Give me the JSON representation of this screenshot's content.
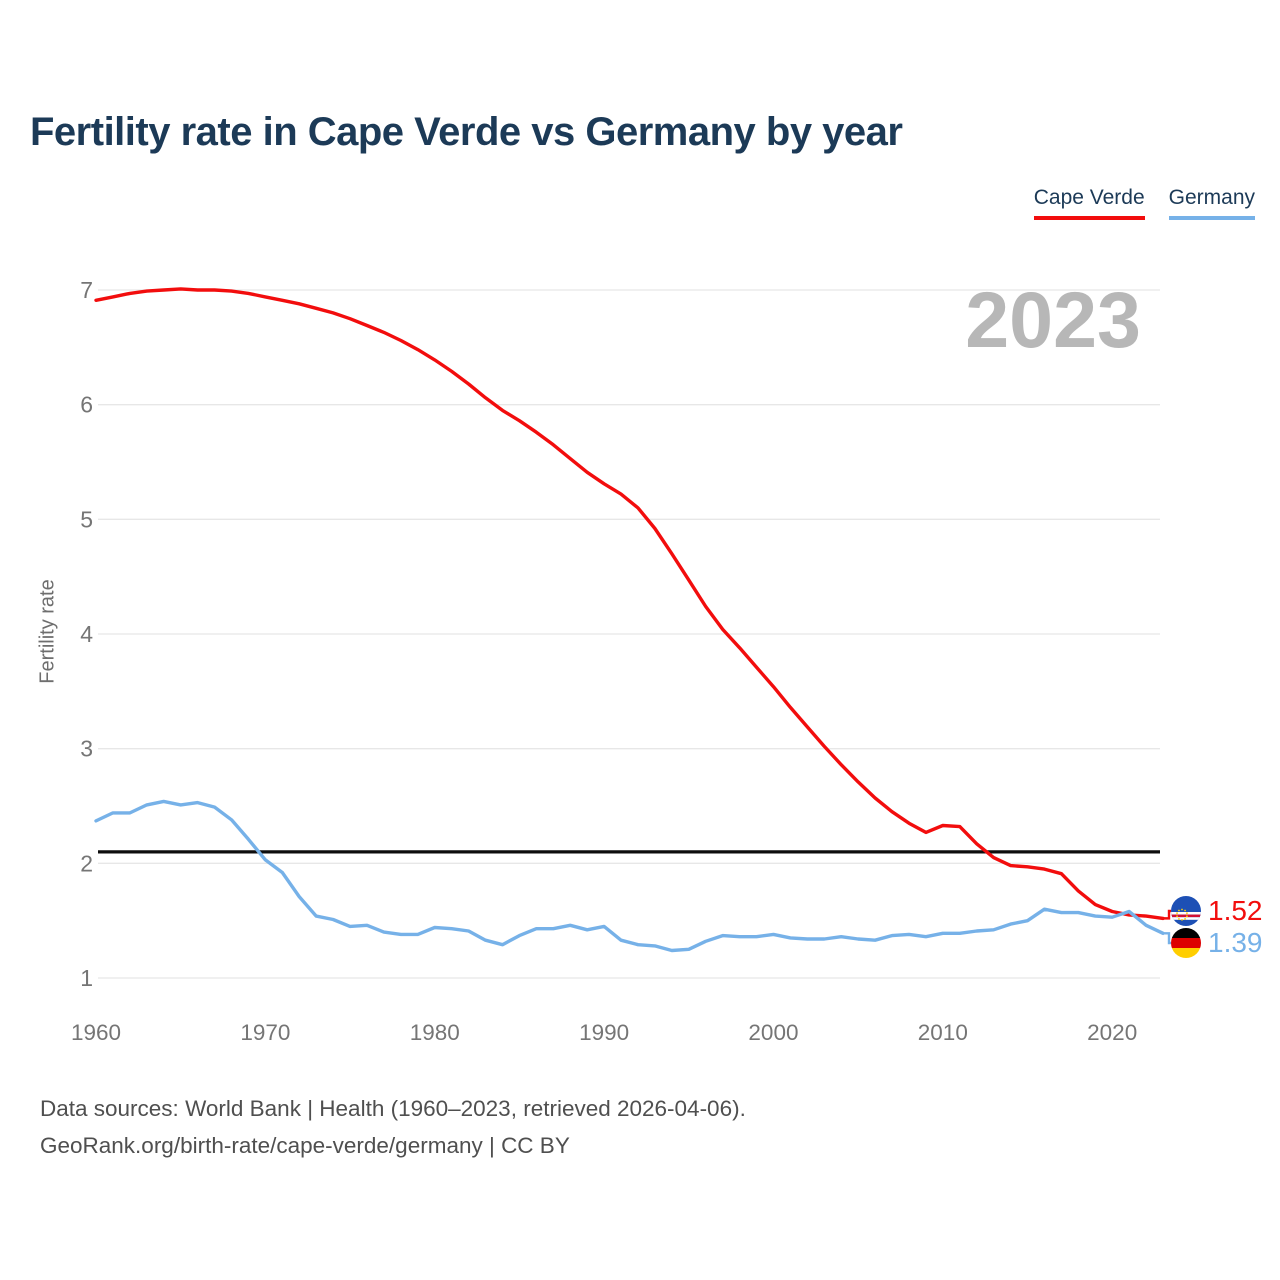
{
  "header": {
    "title": "Fertility rate in Cape Verde vs Germany by year"
  },
  "legend": {
    "items": [
      {
        "label": "Cape Verde",
        "color": "#f20d0d"
      },
      {
        "label": "Germany",
        "color": "#76b1e8"
      }
    ]
  },
  "watermark": {
    "year": "2023",
    "color": "#b7b7b7"
  },
  "footer": {
    "line1": "Data sources: World Bank | Health (1960–2023, retrieved 2026-04-06).",
    "line2": "GeoRank.org/birth-rate/cape-verde/germany | CC BY"
  },
  "icons": {
    "cape-verde-flag": {
      "field": "#1d50b5",
      "stripe_red": "#d21034",
      "stripe_white": "#ffffff",
      "stars": "#ffce00"
    },
    "germany-flag": {
      "black": "#000000",
      "red": "#dd0000",
      "gold": "#ffce00"
    }
  },
  "chart_data": {
    "type": "line",
    "title": "Fertility rate in Cape Verde vs Germany by year",
    "xlabel": "",
    "ylabel": "Fertility rate",
    "x_start": 1960,
    "x_end": 2023,
    "x_ticks": [
      1960,
      1970,
      1980,
      1990,
      2000,
      2010,
      2020
    ],
    "y_ticks": [
      1,
      2,
      3,
      4,
      5,
      6,
      7
    ],
    "ylim": [
      1,
      7
    ],
    "grid": "horizontal",
    "legend_position": "top-right",
    "gridline_color": "#e7e7e7",
    "tick_color": "#757575",
    "baseline": {
      "value": 2.1,
      "color": "#0d0d0d"
    },
    "series": [
      {
        "name": "Cape Verde",
        "color": "#f20d0d",
        "flag": "cape-verde",
        "end_label": "1.52",
        "values": [
          6.91,
          6.94,
          6.97,
          6.99,
          7.0,
          7.01,
          7.0,
          7.0,
          6.99,
          6.97,
          6.94,
          6.91,
          6.88,
          6.84,
          6.8,
          6.75,
          6.69,
          6.63,
          6.56,
          6.48,
          6.39,
          6.29,
          6.18,
          6.06,
          5.95,
          5.86,
          5.76,
          5.65,
          5.53,
          5.41,
          5.31,
          5.22,
          5.1,
          4.92,
          4.7,
          4.47,
          4.24,
          4.04,
          3.88,
          3.71,
          3.54,
          3.36,
          3.19,
          3.02,
          2.86,
          2.71,
          2.57,
          2.45,
          2.35,
          2.27,
          2.33,
          2.32,
          2.17,
          2.05,
          1.98,
          1.97,
          1.95,
          1.91,
          1.76,
          1.64,
          1.58,
          1.55,
          1.54,
          1.52
        ]
      },
      {
        "name": "Germany",
        "color": "#76b1e8",
        "flag": "germany",
        "end_label": "1.39",
        "values": [
          2.37,
          2.44,
          2.44,
          2.51,
          2.54,
          2.51,
          2.53,
          2.49,
          2.38,
          2.21,
          2.03,
          1.92,
          1.71,
          1.54,
          1.51,
          1.45,
          1.46,
          1.4,
          1.38,
          1.38,
          1.44,
          1.43,
          1.41,
          1.33,
          1.29,
          1.37,
          1.43,
          1.43,
          1.46,
          1.42,
          1.45,
          1.33,
          1.29,
          1.28,
          1.24,
          1.25,
          1.32,
          1.37,
          1.36,
          1.36,
          1.38,
          1.35,
          1.34,
          1.34,
          1.36,
          1.34,
          1.33,
          1.37,
          1.38,
          1.36,
          1.39,
          1.39,
          1.41,
          1.42,
          1.47,
          1.5,
          1.6,
          1.57,
          1.57,
          1.54,
          1.53,
          1.58,
          1.46,
          1.39
        ]
      }
    ]
  }
}
